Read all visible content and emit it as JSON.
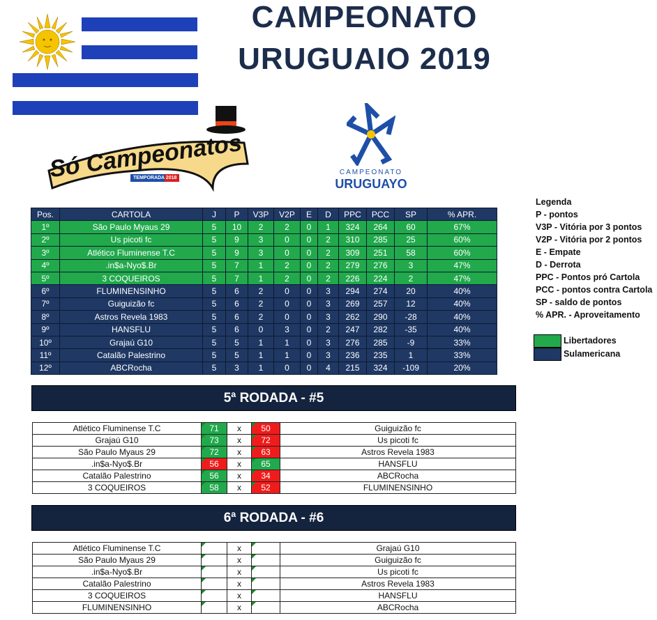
{
  "header": {
    "title_line1": "CAMPEONATO",
    "title_line2": "URUGUAIO 2019"
  },
  "logos": {
    "so_campeonatos": "Só Campeonatos",
    "temporada": "TEMPORADA 2018",
    "cu_line1": "CAMPEONATO",
    "cu_line2": "URUGUAYO"
  },
  "colors": {
    "libertadores": "#21a94c",
    "sulamericana": "#1f3864",
    "win": "#21a94c",
    "lose": "#f01c1c",
    "flag_blue": "#1e40b8",
    "sun": "#f5c400"
  },
  "standings": {
    "headers": [
      "Pos.",
      "CARTOLA",
      "J",
      "P",
      "V3P",
      "V2P",
      "E",
      "D",
      "PPC",
      "PCC",
      "SP",
      "% APR."
    ],
    "rows": [
      {
        "zone": "lib",
        "cells": [
          "1º",
          "São Paulo Myaus 29",
          "5",
          "10",
          "2",
          "2",
          "0",
          "1",
          "324",
          "264",
          "60",
          "67%"
        ]
      },
      {
        "zone": "lib",
        "cells": [
          "2º",
          "Us picoti fc",
          "5",
          "9",
          "3",
          "0",
          "0",
          "2",
          "310",
          "285",
          "25",
          "60%"
        ]
      },
      {
        "zone": "lib",
        "cells": [
          "3º",
          "Atlético Fluminense T.C",
          "5",
          "9",
          "3",
          "0",
          "0",
          "2",
          "309",
          "251",
          "58",
          "60%"
        ]
      },
      {
        "zone": "lib",
        "cells": [
          "4º",
          ".in$a-Nyo$.Br",
          "5",
          "7",
          "1",
          "2",
          "0",
          "2",
          "279",
          "276",
          "3",
          "47%"
        ]
      },
      {
        "zone": "lib",
        "cells": [
          "5º",
          "3 COQUEIROS",
          "5",
          "7",
          "1",
          "2",
          "0",
          "2",
          "226",
          "224",
          "2",
          "47%"
        ]
      },
      {
        "zone": "sul",
        "cells": [
          "6º",
          "FLUMINENSINHO",
          "5",
          "6",
          "2",
          "0",
          "0",
          "3",
          "294",
          "274",
          "20",
          "40%"
        ]
      },
      {
        "zone": "sul",
        "cells": [
          "7º",
          "Guiguizão fc",
          "5",
          "6",
          "2",
          "0",
          "0",
          "3",
          "269",
          "257",
          "12",
          "40%"
        ]
      },
      {
        "zone": "sul",
        "cells": [
          "8º",
          "Astros Revela 1983",
          "5",
          "6",
          "2",
          "0",
          "0",
          "3",
          "262",
          "290",
          "-28",
          "40%"
        ]
      },
      {
        "zone": "sul",
        "cells": [
          "9º",
          "HANSFLU",
          "5",
          "6",
          "0",
          "3",
          "0",
          "2",
          "247",
          "282",
          "-35",
          "40%"
        ]
      },
      {
        "zone": "sul",
        "cells": [
          "10º",
          "Grajaú  G10",
          "5",
          "5",
          "1",
          "1",
          "0",
          "3",
          "276",
          "285",
          "-9",
          "33%"
        ]
      },
      {
        "zone": "sul",
        "cells": [
          "11º",
          "Catalão Palestrino",
          "5",
          "5",
          "1",
          "1",
          "0",
          "3",
          "236",
          "235",
          "1",
          "33%"
        ]
      },
      {
        "zone": "sul",
        "cells": [
          "12º",
          "ABCRocha",
          "5",
          "3",
          "1",
          "0",
          "0",
          "4",
          "215",
          "324",
          "-109",
          "20%"
        ]
      }
    ]
  },
  "legend": {
    "title": "Legenda",
    "items": [
      "P - pontos",
      "V3P - Vitória por 3 pontos",
      "V2P - Vitória por 2 pontos",
      "E - Empate",
      "D - Derrota",
      "PPC - Pontos pró Cartola",
      "PCC - pontos contra Cartola",
      "SP - saldo de pontos",
      "% APR. - Aproveitamento"
    ],
    "libertadores": "Libertadores",
    "sulamericana": "Sulamericana"
  },
  "rounds": [
    {
      "title": "5ª RODADA - #5",
      "matches": [
        {
          "home": "Atlético Fluminense T.C",
          "hs": "71",
          "sep": "x",
          "as": "50",
          "away": "Guiguizão fc"
        },
        {
          "home": "Grajaú  G10",
          "hs": "73",
          "sep": "x",
          "as": "72",
          "away": "Us picoti fc"
        },
        {
          "home": "São Paulo Myaus 29",
          "hs": "72",
          "sep": "x",
          "as": "63",
          "away": "Astros Revela 1983"
        },
        {
          "home": ".in$a-Nyo$.Br",
          "hs": "56",
          "sep": "x",
          "as": "65",
          "away": "HANSFLU"
        },
        {
          "home": "Catalão Palestrino",
          "hs": "56",
          "sep": "x",
          "as": "34",
          "away": "ABCRocha"
        },
        {
          "home": "3 COQUEIROS",
          "hs": "58",
          "sep": "x",
          "as": "52",
          "away": "FLUMINENSINHO"
        }
      ]
    },
    {
      "title": "6ª RODADA - #6",
      "matches": [
        {
          "home": "Atlético Fluminense T.C",
          "hs": "",
          "sep": "x",
          "as": "",
          "away": "Grajaú  G10"
        },
        {
          "home": "São Paulo Myaus 29",
          "hs": "",
          "sep": "x",
          "as": "",
          "away": "Guiguizão fc"
        },
        {
          "home": ".in$a-Nyo$.Br",
          "hs": "",
          "sep": "x",
          "as": "",
          "away": "Us picoti fc"
        },
        {
          "home": "Catalão Palestrino",
          "hs": "",
          "sep": "x",
          "as": "",
          "away": "Astros Revela 1983"
        },
        {
          "home": "3 COQUEIROS",
          "hs": "",
          "sep": "x",
          "as": "",
          "away": "HANSFLU"
        },
        {
          "home": "FLUMINENSINHO",
          "hs": "",
          "sep": "x",
          "as": "",
          "away": "ABCRocha"
        }
      ]
    }
  ]
}
